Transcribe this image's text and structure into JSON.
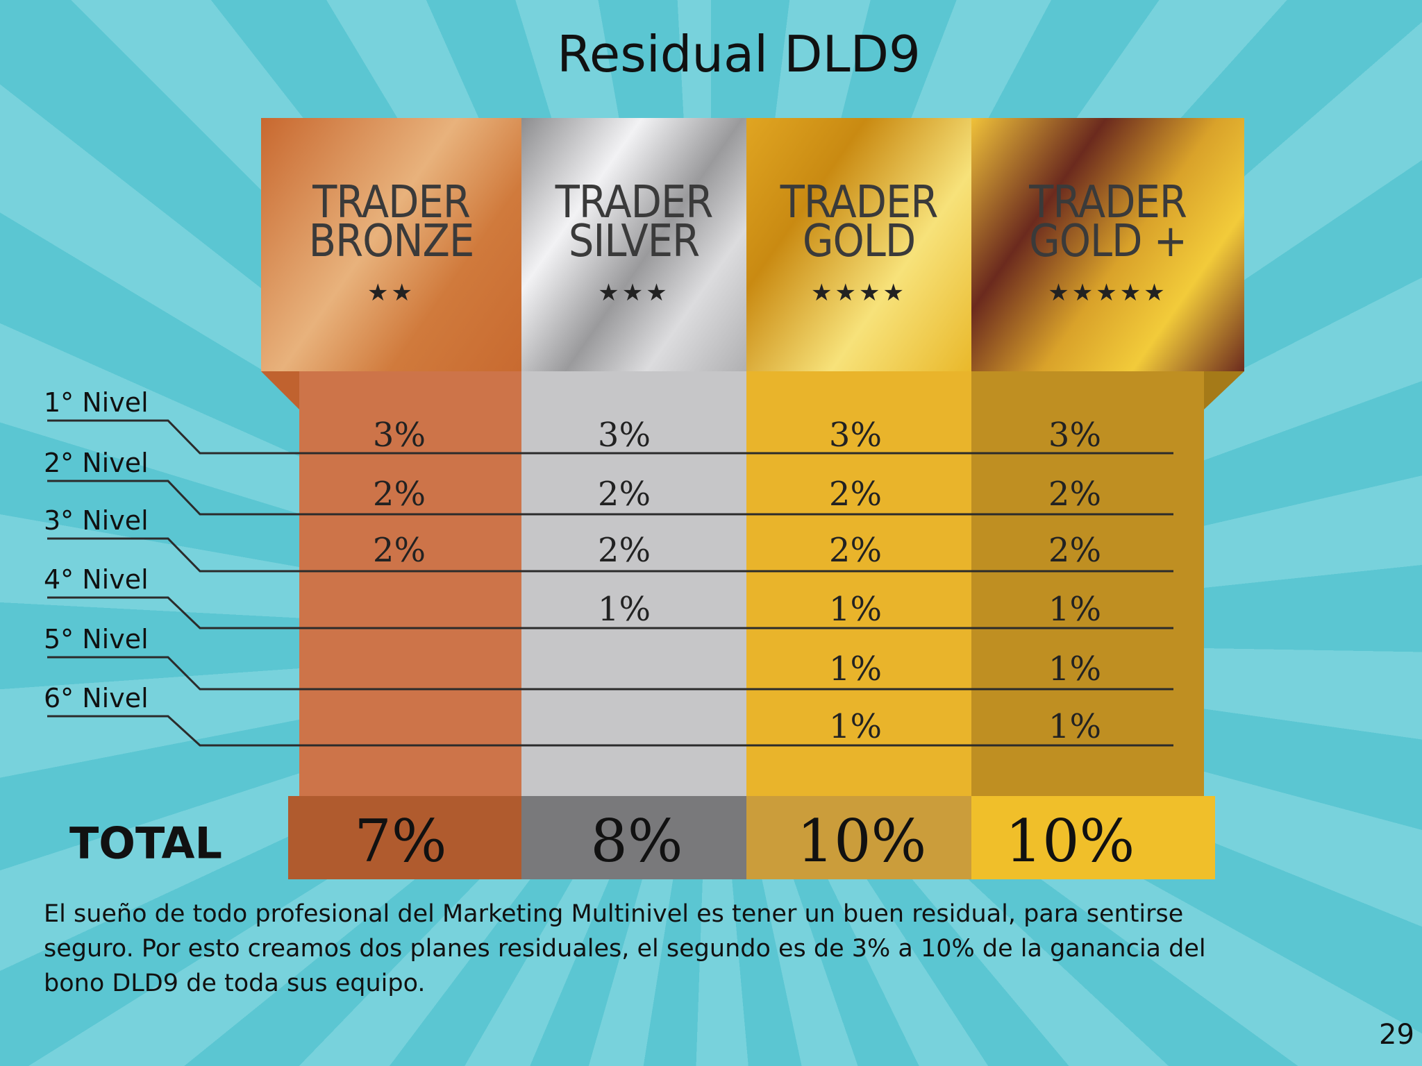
{
  "title": "Residual DLD9",
  "columns": [
    {
      "name": [
        "TRADER",
        "BRONZE"
      ],
      "stars": "★★"
    },
    {
      "name": [
        "TRADER",
        "SILVER"
      ],
      "stars": "★★★"
    },
    {
      "name": [
        "TRADER",
        "GOLD"
      ],
      "stars": "★★★★"
    },
    {
      "name": [
        "TRADER",
        "GOLD +"
      ],
      "stars": "★★★★★"
    }
  ],
  "rows": [
    {
      "label": "1° Nivel",
      "cells": [
        "3%",
        "3%",
        "3%",
        "3%"
      ]
    },
    {
      "label": "2° Nivel",
      "cells": [
        "2%",
        "2%",
        "2%",
        "2%"
      ]
    },
    {
      "label": "3° Nivel",
      "cells": [
        "2%",
        "2%",
        "2%",
        "2%"
      ]
    },
    {
      "label": "4° Nivel",
      "cells": [
        null,
        "1%",
        "1%",
        "1%"
      ]
    },
    {
      "label": "5° Nivel",
      "cells": [
        null,
        null,
        "1%",
        "1%"
      ]
    },
    {
      "label": "6° Nivel",
      "cells": [
        null,
        null,
        "1%",
        "1%"
      ]
    }
  ],
  "total": {
    "label": "TOTAL",
    "values": [
      "7%",
      "8%",
      "10%",
      "10%"
    ]
  },
  "description": "El sueño de todo profesional del Marketing Multinivel es tener un buen residual, para sentirse seguro. Por esto creamos dos planes residuales, el segundo es de 3% a 10% de la ganancia del bono DLD9 de toda sus equipo.",
  "page_number": "29"
}
